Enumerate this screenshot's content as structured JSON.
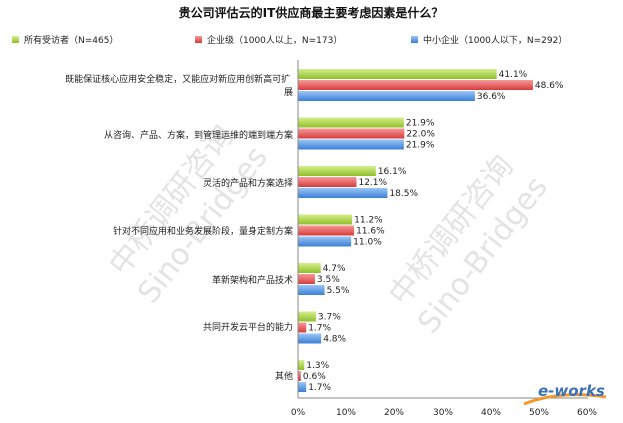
{
  "chart_data": {
    "type": "bar",
    "orientation": "horizontal",
    "title": "贵公司评估云的IT供应商最主要考虑因素是什么？",
    "categories": [
      "既能保证核心应用安全稳定，又能应对新应用创新高可扩展",
      "从咨询、产品、方案，到管理运维的端到端方案",
      "灵活的产品和方案选择",
      "针对不同应用和业务发展阶段，量身定制方案",
      "革新架构和产品技术",
      "共同开发云平台的能力",
      "其他"
    ],
    "series": [
      {
        "name": "所有受访者（N=465）",
        "color": "#b2d94e",
        "values": [
          41.1,
          21.9,
          16.1,
          11.2,
          4.7,
          3.7,
          1.3
        ]
      },
      {
        "name": "企业级（1000人以上，N=173）",
        "color": "#ec5b5b",
        "values": [
          48.6,
          22.0,
          12.1,
          11.6,
          3.5,
          1.7,
          0.6
        ]
      },
      {
        "name": "中小企业（1000人以下，N=292）",
        "color": "#5b9be8",
        "values": [
          36.6,
          21.9,
          18.5,
          11.0,
          5.5,
          4.8,
          1.7
        ]
      }
    ],
    "x_ticks": [
      "0%",
      "10%",
      "20%",
      "30%",
      "40%",
      "50%",
      "60%"
    ],
    "xlim": [
      0,
      60
    ],
    "value_suffix": "%",
    "grid": false,
    "legend_position": "top"
  },
  "watermarks": [
    "中桥调研咨询",
    "Sino-Bridges"
  ],
  "logo": "e-works"
}
